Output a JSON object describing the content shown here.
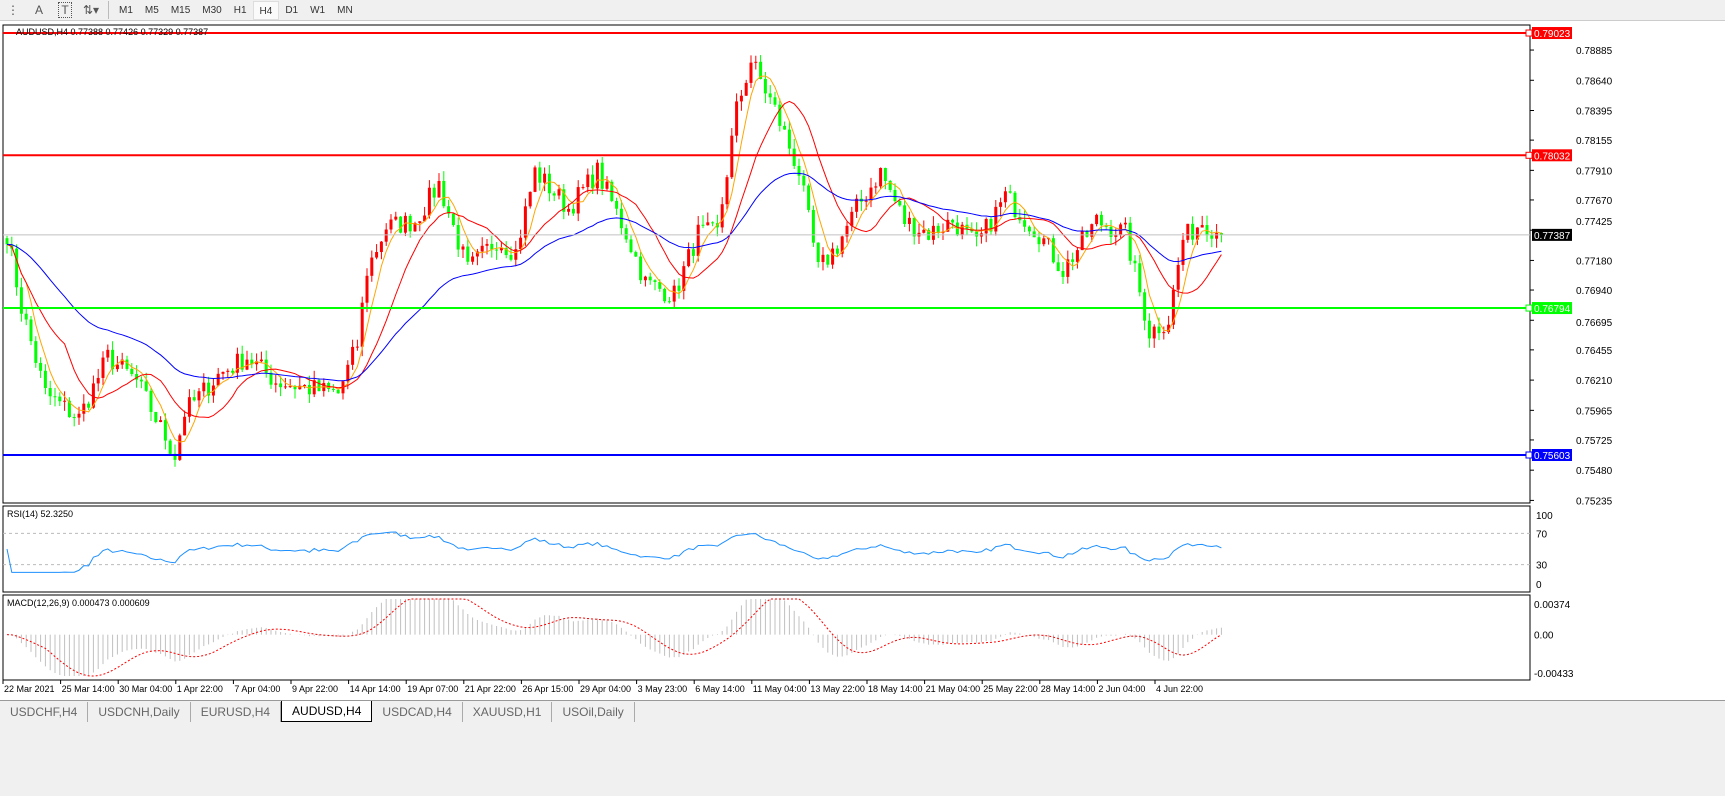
{
  "toolbar": {
    "icons": [
      "period-separator-icon",
      "text-icon",
      "text-label-icon",
      "arrows-icon"
    ],
    "text_icon": "A",
    "label_icon": "T",
    "timeframes": [
      "M1",
      "M5",
      "M15",
      "M30",
      "H1",
      "H4",
      "D1",
      "W1",
      "MN"
    ],
    "active_timeframe": "H4"
  },
  "chart_header": "AUDUSD,H4  0.77388 0.77426 0.77329 0.77387",
  "rsi_label": "RSI(14) 52.3250",
  "macd_label": "MACD(12,26,9) 0.000473 0.000609",
  "colors": {
    "bull": "#ff0000",
    "bear": "#00ff00",
    "ma_fast": "#ffa500",
    "ma_mid": "#ff0000",
    "ma_slow": "#0000ff",
    "rsi": "#1e90ff",
    "macd_hist": "#c0c0c0",
    "macd_signal": "#ff0000"
  },
  "chart_data": {
    "type": "candlestick",
    "symbol": "AUDUSD",
    "timeframe": "H4",
    "ylim": [
      0.75214,
      0.79088
    ],
    "price_ticks": [
      "0.78885",
      "0.78640",
      "0.78395",
      "0.78155",
      "0.77910",
      "0.77670",
      "0.77425",
      "0.77180",
      "0.76940",
      "0.76695",
      "0.76455",
      "0.76210",
      "0.75965",
      "0.75725",
      "0.75480",
      "0.75235"
    ],
    "current_price": "0.77387",
    "horizontal_lines": [
      {
        "price": "0.79023",
        "color": "#ff0000"
      },
      {
        "price": "0.78032",
        "color": "#ff0000"
      },
      {
        "price": "0.76794",
        "color": "#00ff00"
      },
      {
        "price": "0.75603",
        "color": "#0000ff"
      }
    ],
    "time_labels": [
      "22 Mar 2021",
      "25 Mar 14:00",
      "30 Mar 04:00",
      "1 Apr 22:00",
      "7 Apr 04:00",
      "9 Apr 22:00",
      "14 Apr 14:00",
      "19 Apr 07:00",
      "21 Apr 22:00",
      "26 Apr 15:00",
      "29 Apr 04:00",
      "3 May 23:00",
      "6 May 14:00",
      "11 May 04:00",
      "13 May 22:00",
      "18 May 14:00",
      "21 May 04:00",
      "25 May 22:00",
      "28 May 14:00",
      "2 Jun 04:00",
      "4 Jun 22:00"
    ],
    "approx_close_by_bar": [
      [
        0,
        0.774
      ],
      [
        3,
        0.768
      ],
      [
        8,
        0.761
      ],
      [
        15,
        0.759
      ],
      [
        21,
        0.764
      ],
      [
        27,
        0.762
      ],
      [
        35,
        0.756
      ],
      [
        37,
        0.7595
      ],
      [
        44,
        0.7625
      ],
      [
        50,
        0.764
      ],
      [
        56,
        0.762
      ],
      [
        62,
        0.7615
      ],
      [
        69,
        0.761
      ],
      [
        73,
        0.765
      ],
      [
        75,
        0.771
      ],
      [
        79,
        0.7745
      ],
      [
        85,
        0.775
      ],
      [
        90,
        0.778
      ],
      [
        96,
        0.771
      ],
      [
        102,
        0.7735
      ],
      [
        106,
        0.7725
      ],
      [
        110,
        0.779
      ],
      [
        117,
        0.776
      ],
      [
        123,
        0.779
      ],
      [
        129,
        0.774
      ],
      [
        133,
        0.77
      ],
      [
        139,
        0.769
      ],
      [
        144,
        0.774
      ],
      [
        148,
        0.774
      ],
      [
        152,
        0.784
      ],
      [
        155,
        0.788
      ],
      [
        160,
        0.784
      ],
      [
        165,
        0.779
      ],
      [
        169,
        0.771
      ],
      [
        173,
        0.773
      ],
      [
        177,
        0.776
      ],
      [
        182,
        0.779
      ],
      [
        187,
        0.775
      ],
      [
        192,
        0.774
      ],
      [
        197,
        0.775
      ],
      [
        202,
        0.773
      ],
      [
        208,
        0.777
      ],
      [
        215,
        0.774
      ],
      [
        220,
        0.771
      ],
      [
        227,
        0.775
      ],
      [
        233,
        0.774
      ],
      [
        238,
        0.766
      ],
      [
        242,
        0.767
      ],
      [
        245,
        0.7735
      ],
      [
        249,
        0.775
      ],
      [
        253,
        0.7739
      ]
    ],
    "rsi": {
      "ticks": [
        "100",
        "70",
        "30",
        "0"
      ],
      "levels": [
        70,
        30
      ],
      "last": 52.325
    },
    "macd": {
      "ticks": [
        "0.00374",
        "0.00",
        "-0.00433"
      ],
      "ylim": [
        -0.00433,
        0.00374
      ],
      "main": 0.000473,
      "signal": 0.000609
    }
  },
  "symbol_tabs": [
    "USDCHF,H4",
    "USDCNH,Daily",
    "EURUSD,H4",
    "AUDUSD,H4",
    "USDCAD,H4",
    "XAUUSD,H1",
    "USOil,Daily"
  ],
  "active_tab": "AUDUSD,H4"
}
